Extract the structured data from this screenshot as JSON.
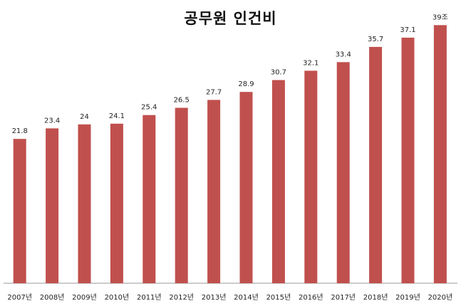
{
  "chart_data": {
    "type": "bar",
    "title": "공무원 인건비",
    "xlabel": "",
    "ylabel": "",
    "categories": [
      "2007년",
      "2008년",
      "2009년",
      "2010년",
      "2011년",
      "2012년",
      "2013년",
      "2014년",
      "2015년",
      "2016년",
      "2017년",
      "2018년",
      "2019년",
      "2020년"
    ],
    "values": [
      21.8,
      23.4,
      24,
      24.1,
      25.4,
      26.5,
      27.7,
      28.9,
      30.7,
      32.1,
      33.4,
      35.7,
      37.1,
      39
    ],
    "data_labels": [
      "21.8",
      "23.4",
      "24",
      "24.1",
      "25.4",
      "26.5",
      "27.7",
      "28.9",
      "30.7",
      "32.1",
      "33.4",
      "35.7",
      "37.1",
      "39조"
    ],
    "ylim": [
      0,
      41.5
    ],
    "grid": false,
    "bar_color": "#C0504D"
  }
}
